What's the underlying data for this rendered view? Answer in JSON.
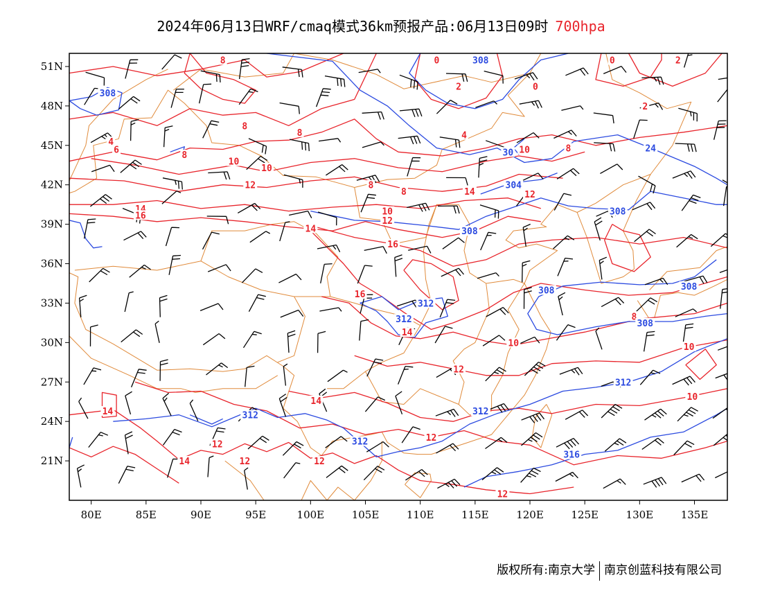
{
  "header": {
    "title": "2024年06月13日WRF/cmaq模式36km预报产品:06月13日09时",
    "level": "700hpa"
  },
  "colors": {
    "height_contour": "#2b4ae0",
    "temperature_contour": "#e8242b",
    "boundary": "#e08a3a",
    "wind_barb": "#000000",
    "level_text": "#e8242b"
  },
  "axes": {
    "lat_labels": [
      "51N",
      "48N",
      "45N",
      "42N",
      "39N",
      "36N",
      "33N",
      "30N",
      "27N",
      "24N",
      "21N"
    ],
    "lon_labels": [
      "80E",
      "85E",
      "90E",
      "95E",
      "100E",
      "105E",
      "110E",
      "115E",
      "120E",
      "125E",
      "130E",
      "135E"
    ],
    "lon_range": [
      78,
      138
    ],
    "lat_range": [
      18,
      52
    ]
  },
  "contour_labels": {
    "height": [
      {
        "text": "308",
        "lon": 81.5,
        "lat": 49.0
      },
      {
        "text": "308",
        "lon": 115.5,
        "lat": 51.5
      },
      {
        "text": "30",
        "lon": 118.0,
        "lat": 44.5
      },
      {
        "text": "304",
        "lon": 118.5,
        "lat": 42.0
      },
      {
        "text": "308",
        "lon": 128.0,
        "lat": 40.0
      },
      {
        "text": "308",
        "lon": 114.5,
        "lat": 38.5
      },
      {
        "text": "24",
        "lon": 131.0,
        "lat": 44.8
      },
      {
        "text": "308",
        "lon": 121.5,
        "lat": 34.0
      },
      {
        "text": "308",
        "lon": 134.5,
        "lat": 34.3
      },
      {
        "text": "308",
        "lon": 130.5,
        "lat": 31.5
      },
      {
        "text": "312",
        "lon": 110.5,
        "lat": 33.0
      },
      {
        "text": "312",
        "lon": 108.5,
        "lat": 31.8
      },
      {
        "text": "312",
        "lon": 128.5,
        "lat": 27.0
      },
      {
        "text": "312",
        "lon": 94.5,
        "lat": 24.5
      },
      {
        "text": "312",
        "lon": 115.5,
        "lat": 24.8
      },
      {
        "text": "312",
        "lon": 104.5,
        "lat": 22.5
      },
      {
        "text": "316",
        "lon": 123.8,
        "lat": 21.5
      }
    ],
    "temperature": [
      {
        "text": "8",
        "lon": 92.0,
        "lat": 51.5
      },
      {
        "text": "0",
        "lon": 111.5,
        "lat": 51.5
      },
      {
        "text": "0",
        "lon": 127.5,
        "lat": 51.5
      },
      {
        "text": "2",
        "lon": 133.5,
        "lat": 51.5
      },
      {
        "text": "2",
        "lon": 113.5,
        "lat": 49.5
      },
      {
        "text": "0",
        "lon": 120.5,
        "lat": 49.5
      },
      {
        "text": "2",
        "lon": 130.5,
        "lat": 48.0
      },
      {
        "text": "8",
        "lon": 94.0,
        "lat": 46.5
      },
      {
        "text": "8",
        "lon": 99.0,
        "lat": 46.0
      },
      {
        "text": "4",
        "lon": 114.0,
        "lat": 45.8
      },
      {
        "text": "4",
        "lon": 81.8,
        "lat": 45.3
      },
      {
        "text": "6",
        "lon": 82.3,
        "lat": 44.7
      },
      {
        "text": "8",
        "lon": 88.5,
        "lat": 44.3
      },
      {
        "text": "10",
        "lon": 93.0,
        "lat": 43.8
      },
      {
        "text": "10",
        "lon": 96.0,
        "lat": 43.3
      },
      {
        "text": "10",
        "lon": 119.5,
        "lat": 44.7
      },
      {
        "text": "8",
        "lon": 123.5,
        "lat": 44.8
      },
      {
        "text": "12",
        "lon": 94.5,
        "lat": 42.0
      },
      {
        "text": "8",
        "lon": 105.5,
        "lat": 42.0
      },
      {
        "text": "8",
        "lon": 108.5,
        "lat": 41.5
      },
      {
        "text": "14",
        "lon": 114.5,
        "lat": 41.5
      },
      {
        "text": "12",
        "lon": 120.0,
        "lat": 41.3
      },
      {
        "text": "14",
        "lon": 84.5,
        "lat": 40.2
      },
      {
        "text": "16",
        "lon": 84.5,
        "lat": 39.7
      },
      {
        "text": "10",
        "lon": 107.0,
        "lat": 40.0
      },
      {
        "text": "12",
        "lon": 107.0,
        "lat": 39.3
      },
      {
        "text": "14",
        "lon": 100.0,
        "lat": 38.7
      },
      {
        "text": "16",
        "lon": 107.5,
        "lat": 37.5
      },
      {
        "text": "16",
        "lon": 104.5,
        "lat": 33.7
      },
      {
        "text": "14",
        "lon": 108.8,
        "lat": 30.8
      },
      {
        "text": "10",
        "lon": 118.5,
        "lat": 30.0
      },
      {
        "text": "8",
        "lon": 129.5,
        "lat": 32.0
      },
      {
        "text": "10",
        "lon": 134.5,
        "lat": 29.7
      },
      {
        "text": "12",
        "lon": 113.5,
        "lat": 28.0
      },
      {
        "text": "10",
        "lon": 134.8,
        "lat": 25.9
      },
      {
        "text": "14",
        "lon": 81.5,
        "lat": 24.8
      },
      {
        "text": "14",
        "lon": 100.5,
        "lat": 25.6
      },
      {
        "text": "12",
        "lon": 111.0,
        "lat": 22.8
      },
      {
        "text": "12",
        "lon": 91.5,
        "lat": 22.3
      },
      {
        "text": "14",
        "lon": 88.5,
        "lat": 21.0
      },
      {
        "text": "12",
        "lon": 94.0,
        "lat": 21.0
      },
      {
        "text": "12",
        "lon": 100.8,
        "lat": 21.0
      },
      {
        "text": "12",
        "lon": 117.5,
        "lat": 18.5
      }
    ]
  },
  "footer": {
    "left": "版权所有:南京大学",
    "right": "南京创蓝科技有限公司"
  }
}
